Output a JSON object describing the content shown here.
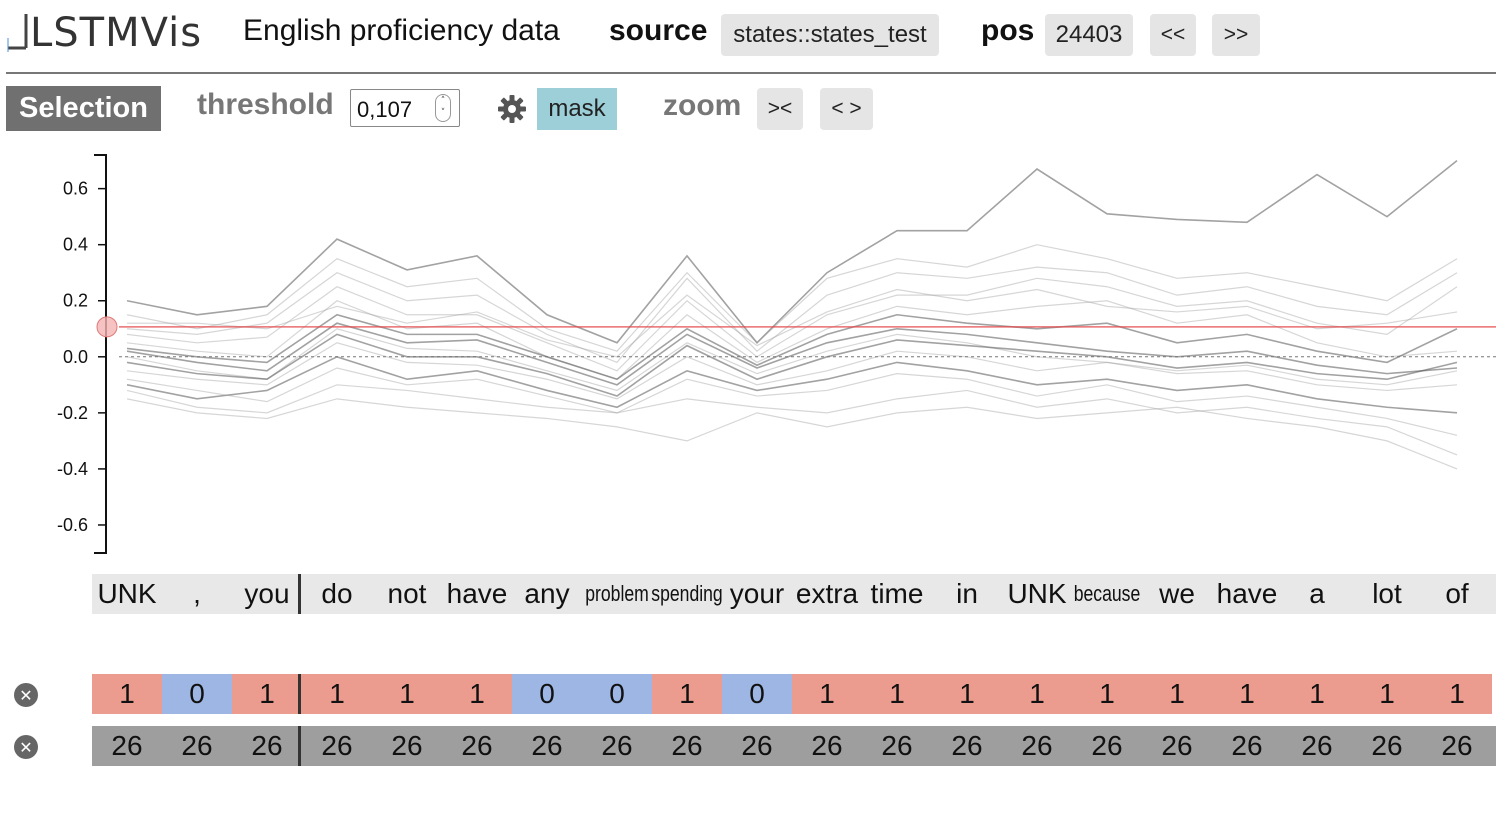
{
  "header": {
    "logo_text": "LSTMVis",
    "title": "English proficiency data",
    "source_label": "source",
    "source_value": "states::states_test",
    "pos_label": "pos",
    "pos_value": "24403",
    "prev_label": "<<",
    "next_label": ">>"
  },
  "toolbar": {
    "selection_label": "Selection",
    "threshold_label": "threshold",
    "threshold_value": "0,107",
    "gear_icon": "gear-icon",
    "mask_label": "mask",
    "zoom_label": "zoom",
    "zoom_in_label": "><",
    "zoom_out_label": "< >"
  },
  "colors": {
    "mask_active": "#9ccfd8",
    "selected_cell": "#ec9c8f",
    "unselected_cell": "#9db6e3",
    "count_cell": "#9e9e9e",
    "threshold_line": "#e34a4a"
  },
  "words": [
    "UNK",
    ",",
    "you",
    "do",
    "not",
    "have",
    "any",
    "problem",
    "spending",
    "your",
    "extra",
    "time",
    "in",
    "UNK",
    "because",
    "we",
    "have",
    "a",
    "lot",
    "of"
  ],
  "annotation_rows": [
    {
      "values": [
        "1",
        "0",
        "1",
        "1",
        "1",
        "1",
        "0",
        "0",
        "1",
        "0",
        "1",
        "1",
        "1",
        "1",
        "1",
        "1",
        "1",
        "1",
        "1",
        "1"
      ]
    },
    {
      "values": [
        "26",
        "26",
        "26",
        "26",
        "26",
        "26",
        "26",
        "26",
        "26",
        "26",
        "26",
        "26",
        "26",
        "26",
        "26",
        "26",
        "26",
        "26",
        "26",
        "26"
      ]
    }
  ],
  "chart_data": {
    "type": "line",
    "title": "",
    "xlabel": "",
    "ylabel": "",
    "ylim": [
      -0.7,
      0.72
    ],
    "yticks": [
      "0.6",
      "0.4",
      "0.2",
      "0.0",
      "-0.2",
      "-0.4",
      "-0.6"
    ],
    "ytick_values": [
      0.6,
      0.4,
      0.2,
      0.0,
      -0.2,
      -0.4,
      -0.6
    ],
    "threshold": 0.107,
    "zero_line": true,
    "x": [
      "UNK",
      ",",
      "you",
      "do",
      "not",
      "have",
      "any",
      "problem",
      "spending",
      "your",
      "extra",
      "time",
      "in",
      "UNK",
      "because",
      "we",
      "have",
      "a",
      "lot",
      "of"
    ],
    "series": [
      {
        "values": [
          0.02,
          -0.02,
          -0.05,
          0.12,
          0.05,
          0.06,
          -0.02,
          -0.1,
          0.08,
          -0.04,
          0.05,
          0.1,
          0.08,
          0.05,
          0.02,
          0.0,
          0.02,
          -0.03,
          -0.06,
          -0.04
        ]
      },
      {
        "values": [
          0.05,
          0.02,
          0.0,
          0.2,
          0.1,
          0.12,
          0.0,
          -0.08,
          0.15,
          -0.02,
          0.1,
          0.18,
          0.15,
          0.18,
          0.2,
          0.12,
          0.15,
          0.05,
          0.0,
          0.02
        ]
      },
      {
        "values": [
          0.0,
          -0.05,
          -0.08,
          0.1,
          0.03,
          0.02,
          -0.05,
          -0.12,
          0.05,
          -0.06,
          0.02,
          0.08,
          0.05,
          0.0,
          -0.02,
          -0.05,
          -0.03,
          -0.08,
          -0.1,
          -0.05
        ]
      },
      {
        "values": [
          0.2,
          0.15,
          0.18,
          0.42,
          0.31,
          0.36,
          0.15,
          0.05,
          0.36,
          0.05,
          0.3,
          0.45,
          0.45,
          0.67,
          0.51,
          0.49,
          0.48,
          0.65,
          0.5,
          0.7
        ]
      },
      {
        "values": [
          -0.15,
          -0.2,
          -0.22,
          -0.15,
          -0.18,
          -0.2,
          -0.22,
          -0.25,
          -0.3,
          -0.2,
          -0.25,
          -0.2,
          -0.18,
          -0.22,
          -0.2,
          -0.18,
          -0.22,
          -0.25,
          -0.3,
          -0.4
        ]
      },
      {
        "values": [
          0.1,
          0.08,
          0.12,
          0.3,
          0.2,
          0.22,
          0.08,
          -0.02,
          0.28,
          0.02,
          0.22,
          0.3,
          0.28,
          0.32,
          0.3,
          0.22,
          0.25,
          0.18,
          0.15,
          0.3
        ]
      },
      {
        "values": [
          -0.1,
          -0.15,
          -0.12,
          0.0,
          -0.08,
          -0.05,
          -0.12,
          -0.18,
          -0.05,
          -0.12,
          -0.08,
          -0.02,
          -0.05,
          -0.1,
          -0.08,
          -0.12,
          -0.1,
          -0.15,
          -0.18,
          -0.2
        ]
      },
      {
        "values": [
          0.08,
          0.05,
          0.07,
          0.25,
          0.15,
          0.15,
          0.05,
          -0.05,
          0.2,
          0.0,
          0.15,
          0.22,
          0.22,
          0.28,
          0.25,
          0.18,
          0.2,
          0.12,
          0.08,
          0.25
        ]
      },
      {
        "values": [
          -0.05,
          -0.08,
          -0.1,
          0.05,
          -0.02,
          -0.03,
          -0.08,
          -0.15,
          0.0,
          -0.1,
          -0.05,
          0.02,
          0.0,
          -0.05,
          -0.02,
          -0.06,
          -0.05,
          -0.1,
          -0.12,
          -0.1
        ]
      },
      {
        "values": [
          0.03,
          0.0,
          -0.02,
          0.15,
          0.08,
          0.08,
          0.0,
          -0.08,
          0.1,
          -0.03,
          0.08,
          0.15,
          0.12,
          0.1,
          0.12,
          0.05,
          0.08,
          0.02,
          -0.02,
          0.1
        ]
      },
      {
        "values": [
          -0.12,
          -0.18,
          -0.2,
          -0.1,
          -0.12,
          -0.15,
          -0.18,
          -0.2,
          -0.15,
          -0.18,
          -0.2,
          -0.15,
          -0.12,
          -0.18,
          -0.15,
          -0.2,
          -0.18,
          -0.22,
          -0.25,
          -0.35
        ]
      },
      {
        "values": [
          0.15,
          0.1,
          0.15,
          0.35,
          0.25,
          0.28,
          0.1,
          0.02,
          0.3,
          0.05,
          0.28,
          0.35,
          0.32,
          0.4,
          0.35,
          0.28,
          0.3,
          0.25,
          0.2,
          0.35
        ]
      },
      {
        "values": [
          -0.02,
          -0.06,
          -0.08,
          0.08,
          0.0,
          0.0,
          -0.06,
          -0.14,
          0.04,
          -0.08,
          0.0,
          0.06,
          0.04,
          0.02,
          0.0,
          -0.04,
          -0.02,
          -0.06,
          -0.08,
          -0.02
        ]
      },
      {
        "values": [
          0.12,
          0.12,
          0.1,
          0.18,
          0.12,
          0.16,
          0.06,
          0.0,
          0.22,
          0.04,
          0.16,
          0.24,
          0.2,
          0.24,
          0.18,
          0.16,
          0.18,
          0.1,
          0.12,
          0.16
        ]
      },
      {
        "values": [
          -0.08,
          -0.12,
          -0.16,
          -0.04,
          -0.1,
          -0.08,
          -0.14,
          -0.2,
          -0.08,
          -0.14,
          -0.12,
          -0.06,
          -0.08,
          -0.14,
          -0.1,
          -0.16,
          -0.14,
          -0.18,
          -0.22,
          -0.28
        ]
      }
    ]
  }
}
